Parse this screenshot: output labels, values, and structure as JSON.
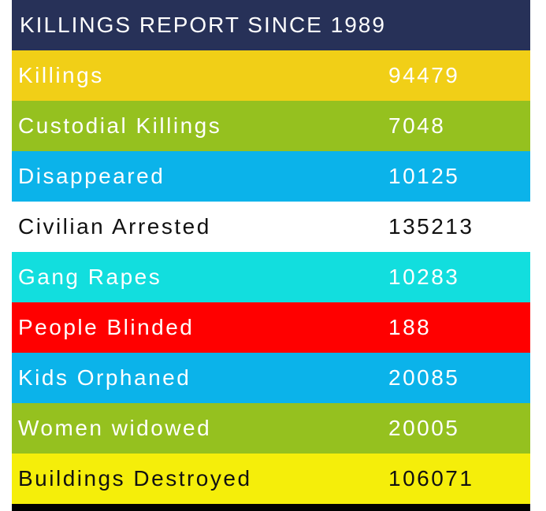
{
  "title": "KILLINGS REPORT SINCE 1989",
  "rows": [
    {
      "label": "Killings",
      "value": "94479",
      "bg": "#f1cf17",
      "fg": "#ffffff"
    },
    {
      "label": "Custodial Killings",
      "value": "7048",
      "bg": "#95c11f",
      "fg": "#ffffff"
    },
    {
      "label": "Disappeared",
      "value": "10125",
      "bg": "#0bb3ea",
      "fg": "#ffffff"
    },
    {
      "label": "Civilian Arrested",
      "value": "135213",
      "bg": "#ffffff",
      "fg": "#111111"
    },
    {
      "label": "Gang Rapes",
      "value": "10283",
      "bg": "#12dede",
      "fg": "#ffffff"
    },
    {
      "label": "People Blinded",
      "value": "188",
      "bg": "#ff0000",
      "fg": "#ffffff"
    },
    {
      "label": "Kids Orphaned",
      "value": "20085",
      "bg": "#0bb3ea",
      "fg": "#ffffff"
    },
    {
      "label": "Women widowed",
      "value": "20005",
      "bg": "#95c11f",
      "fg": "#ffffff"
    },
    {
      "label": "Buildings Destroyed",
      "value": "106071",
      "bg": "#f5ee0a",
      "fg": "#111111"
    }
  ]
}
